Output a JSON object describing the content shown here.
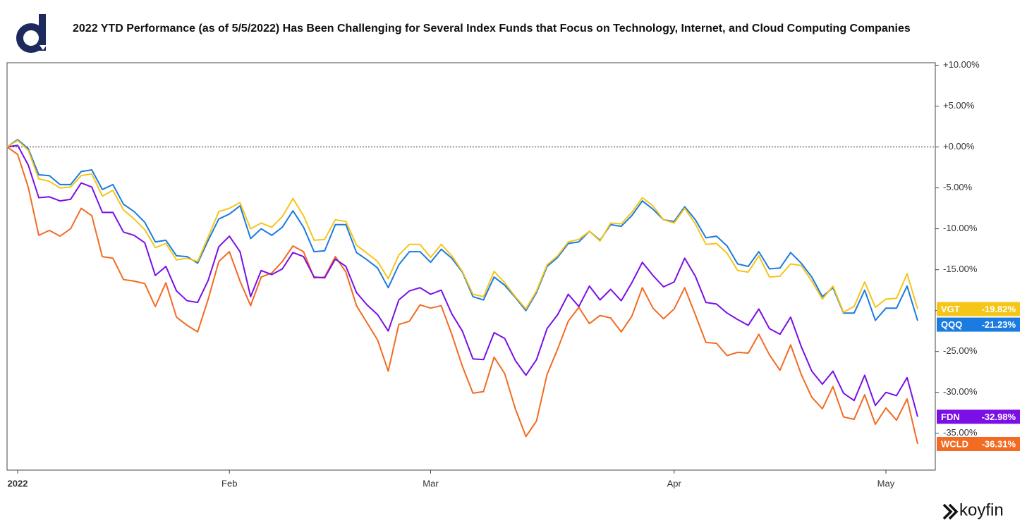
{
  "title": "2022 YTD Performance (as of 5/5/2022) Has Been Challenging for Several Index Funds that Focus on Technology, Internet, and Cloud Computing Companies",
  "brand": "koyfin",
  "chart_data": {
    "type": "line",
    "categories": [
      null,
      "2022",
      null,
      null,
      null,
      null,
      null,
      null,
      null,
      null,
      null,
      null,
      null,
      null,
      null,
      null,
      null,
      null,
      null,
      null,
      null,
      "Feb",
      null,
      null,
      null,
      null,
      null,
      null,
      null,
      null,
      null,
      null,
      null,
      null,
      null,
      null,
      null,
      null,
      null,
      null,
      "Mar",
      null,
      null,
      null,
      null,
      null,
      null,
      null,
      null,
      null,
      null,
      null,
      null,
      null,
      null,
      null,
      null,
      null,
      null,
      null,
      null,
      null,
      null,
      "Apr",
      null,
      null,
      null,
      null,
      null,
      null,
      null,
      null,
      null,
      null,
      null,
      null,
      null,
      null,
      null,
      null,
      null,
      null,
      null,
      "May",
      null,
      null,
      null
    ],
    "ylim": [
      -39.5,
      10.3
    ],
    "yticks": [
      {
        "value": 10,
        "label": "+10.00%"
      },
      {
        "value": 5,
        "label": "+5.00%"
      },
      {
        "value": 0,
        "label": "+0.00%"
      },
      {
        "value": -5,
        "label": "-5.00%"
      },
      {
        "value": -10,
        "label": "-10.00%"
      },
      {
        "value": -15,
        "label": "-15.00%"
      },
      {
        "value": -20,
        "label": "-20.00%"
      },
      {
        "value": -25,
        "label": "-25.00%"
      },
      {
        "value": -30,
        "label": "-30.00%"
      },
      {
        "value": -35,
        "label": "-35.00%"
      }
    ],
    "y_axis_side": "right",
    "zero_line": true,
    "series": [
      {
        "name": "VGT",
        "color": "#f5c518",
        "end_label": "-19.82%",
        "values": [
          0,
          0.8,
          -0.4,
          -3.9,
          -4.2,
          -5.0,
          -4.9,
          -3.5,
          -3.3,
          -6.0,
          -5.3,
          -7.7,
          -8.8,
          -10.1,
          -12.3,
          -11.8,
          -13.8,
          -13.6,
          -14.0,
          -11.0,
          -7.9,
          -7.5,
          -6.8,
          -10.0,
          -9.3,
          -9.8,
          -8.5,
          -6.3,
          -8.4,
          -11.4,
          -11.3,
          -8.9,
          -9.1,
          -12.0,
          -13.0,
          -14.0,
          -16.1,
          -13.2,
          -11.9,
          -11.9,
          -13.5,
          -11.9,
          -13.3,
          -15.2,
          -18.0,
          -18.3,
          -15.2,
          -16.6,
          -18.3,
          -19.8,
          -17.6,
          -14.4,
          -13.3,
          -11.6,
          -11.3,
          -10.3,
          -11.5,
          -9.3,
          -9.4,
          -8.0,
          -6.2,
          -7.2,
          -8.9,
          -9.3,
          -7.5,
          -9.4,
          -11.9,
          -11.8,
          -13.0,
          -15.1,
          -15.3,
          -13.3,
          -15.9,
          -15.8,
          -14.3,
          -14.5,
          -16.4,
          -18.6,
          -17.0,
          -20.2,
          -19.5,
          -16.5,
          -19.6,
          -18.6,
          -18.5,
          -15.5,
          -19.82
        ]
      },
      {
        "name": "QQQ",
        "color": "#1a7be0",
        "end_label": "-21.23%",
        "values": [
          0,
          0.9,
          -0.2,
          -3.4,
          -3.5,
          -4.6,
          -4.6,
          -3.0,
          -2.8,
          -5.2,
          -4.6,
          -7.0,
          -7.9,
          -9.2,
          -11.6,
          -11.4,
          -13.3,
          -13.4,
          -14.2,
          -11.4,
          -8.8,
          -8.2,
          -7.2,
          -11.2,
          -10.0,
          -10.8,
          -9.8,
          -7.8,
          -9.8,
          -12.8,
          -12.7,
          -9.5,
          -9.5,
          -12.9,
          -13.8,
          -14.8,
          -17.2,
          -14.4,
          -12.8,
          -12.8,
          -14.1,
          -12.5,
          -13.6,
          -15.3,
          -18.3,
          -18.7,
          -15.9,
          -16.9,
          -18.4,
          -20.0,
          -17.8,
          -14.6,
          -13.5,
          -11.8,
          -11.6,
          -10.3,
          -11.4,
          -9.5,
          -9.7,
          -8.4,
          -6.6,
          -7.6,
          -8.9,
          -9.1,
          -7.3,
          -8.9,
          -11.1,
          -10.9,
          -12.1,
          -14.3,
          -14.6,
          -12.8,
          -14.9,
          -14.8,
          -12.9,
          -14.2,
          -15.9,
          -18.3,
          -17.2,
          -20.3,
          -20.3,
          -17.5,
          -21.2,
          -19.7,
          -19.7,
          -17.0,
          -21.23
        ]
      },
      {
        "name": "FDN",
        "color": "#7a0fe6",
        "end_label": "-32.98%",
        "values": [
          0,
          0.2,
          -2.2,
          -6.2,
          -6.1,
          -6.6,
          -6.4,
          -4.4,
          -4.9,
          -8.0,
          -8.0,
          -10.4,
          -10.8,
          -11.7,
          -15.7,
          -14.6,
          -17.6,
          -18.8,
          -19.0,
          -16.3,
          -12.2,
          -10.9,
          -12.8,
          -18.3,
          -15.1,
          -15.6,
          -14.9,
          -12.9,
          -13.4,
          -15.9,
          -16.0,
          -13.7,
          -14.6,
          -17.8,
          -19.3,
          -20.5,
          -22.5,
          -18.7,
          -17.6,
          -17.2,
          -18.0,
          -17.5,
          -20.4,
          -22.5,
          -25.9,
          -26.0,
          -22.7,
          -23.4,
          -26.1,
          -27.9,
          -26.0,
          -22.2,
          -20.5,
          -18.0,
          -19.5,
          -17.0,
          -18.7,
          -17.4,
          -18.8,
          -16.6,
          -14.1,
          -15.7,
          -17.1,
          -16.5,
          -13.6,
          -15.8,
          -19.0,
          -19.2,
          -20.3,
          -21.1,
          -21.8,
          -19.8,
          -22.2,
          -22.9,
          -20.8,
          -24.4,
          -27.4,
          -29.0,
          -27.4,
          -30.1,
          -31.0,
          -27.9,
          -31.6,
          -30.0,
          -30.4,
          -28.2,
          -32.98
        ]
      },
      {
        "name": "WCLD",
        "color": "#f26b22",
        "end_label": "-36.31%",
        "values": [
          0,
          -0.9,
          -4.9,
          -10.8,
          -10.2,
          -10.9,
          -10.0,
          -7.5,
          -8.4,
          -13.4,
          -13.6,
          -16.2,
          -16.4,
          -16.7,
          -19.5,
          -16.6,
          -20.8,
          -21.8,
          -22.6,
          -18.6,
          -14.0,
          -12.8,
          -16.4,
          -19.4,
          -15.9,
          -15.4,
          -14.0,
          -12.1,
          -12.8,
          -16.0,
          -15.9,
          -13.4,
          -15.3,
          -19.4,
          -21.5,
          -23.6,
          -27.4,
          -21.7,
          -21.3,
          -19.3,
          -19.7,
          -19.4,
          -22.9,
          -26.8,
          -30.1,
          -29.9,
          -25.7,
          -27.7,
          -32.0,
          -35.4,
          -33.5,
          -27.8,
          -24.7,
          -21.3,
          -19.6,
          -21.6,
          -20.6,
          -20.9,
          -22.6,
          -20.7,
          -17.2,
          -19.7,
          -21.0,
          -19.8,
          -17.2,
          -20.5,
          -23.9,
          -24.0,
          -25.5,
          -25.1,
          -25.2,
          -22.9,
          -25.4,
          -27.3,
          -24.2,
          -27.8,
          -30.6,
          -32.0,
          -29.3,
          -33.0,
          -33.3,
          -30.3,
          -33.9,
          -31.9,
          -33.4,
          -30.8,
          -36.31
        ]
      }
    ]
  }
}
